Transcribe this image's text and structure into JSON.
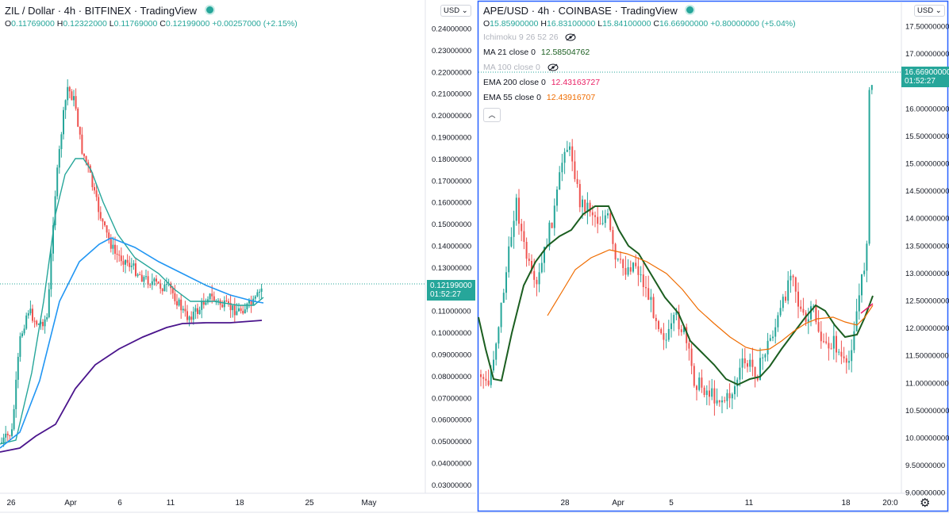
{
  "left": {
    "symbol": "ZIL / Dollar",
    "interval": "4h",
    "exchange": "BITFINEX",
    "provider": "TradingView",
    "ohlc": {
      "o": "0.11769000",
      "h": "0.12322000",
      "l": "0.11769000",
      "c": "0.12199000",
      "chg": "+0.00257000 (+2.15%)"
    },
    "currency": "USD",
    "price_ticks": [
      "0.24000000",
      "0.23000000",
      "0.22000000",
      "0.21000000",
      "0.20000000",
      "0.19000000",
      "0.18000000",
      "0.17000000",
      "0.16000000",
      "0.15000000",
      "0.14000000",
      "0.13000000",
      "0.11000000",
      "0.10000000",
      "0.09000000",
      "0.08000000",
      "0.07000000",
      "0.06000000",
      "0.05000000",
      "0.04000000",
      "0.03000000"
    ],
    "time_ticks": [
      "26",
      "Apr",
      "6",
      "11",
      "18",
      "25",
      "May"
    ],
    "last_price": "0.12199000",
    "countdown": "01:52:27",
    "colors": {
      "ema_fast": "#26a69a",
      "ema_mid": "#2196f3",
      "ema_slow": "#4a148c",
      "up": "#26a69a",
      "down": "#ef5350"
    }
  },
  "right": {
    "symbol": "APE/USD",
    "interval": "4h",
    "exchange": "COINBASE",
    "provider": "TradingView",
    "ohlc": {
      "o": "15.85900000",
      "h": "16.83100000",
      "l": "15.84100000",
      "c": "16.66900000",
      "chg": "+0.80000000 (+5.04%)"
    },
    "currency": "USD",
    "indicators": [
      {
        "name": "Ichimoku 9 26 52 26",
        "value": "",
        "hidden": true,
        "color": "#b2b5be"
      },
      {
        "name": "MA 21 close 0",
        "value": "12.58504762",
        "hidden": false,
        "color": "#1b5e20"
      },
      {
        "name": "MA 100 close 0",
        "value": "",
        "hidden": true,
        "color": "#b2b5be"
      },
      {
        "name": "EMA 200 close 0",
        "value": "12.43163727",
        "hidden": false,
        "color": "#e91e63"
      },
      {
        "name": "EMA 55 close 0",
        "value": "12.43916707",
        "hidden": false,
        "color": "#ef6c00"
      }
    ],
    "price_ticks": [
      "17.50000000",
      "17.00000000",
      "16.00000000",
      "15.50000000",
      "15.00000000",
      "14.50000000",
      "14.00000000",
      "13.50000000",
      "13.00000000",
      "12.50000000",
      "12.00000000",
      "11.50000000",
      "11.00000000",
      "10.50000000",
      "10.00000000",
      "9.50000000",
      "9.00000000"
    ],
    "time_ticks": [
      "28",
      "Apr",
      "5",
      "11",
      "18",
      "20:0"
    ],
    "last_price": "16.66900000",
    "countdown": "01:52:27",
    "colors": {
      "ma21": "#1b5e20",
      "ema55": "#ef6c00",
      "ema200": "#e91e63",
      "up": "#26a69a",
      "down": "#ef5350",
      "accent": "#2962ff"
    }
  }
}
